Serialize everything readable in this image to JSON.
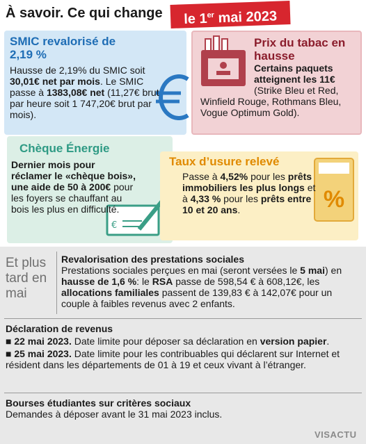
{
  "header": {
    "title": "À savoir. Ce qui change",
    "badge": [
      "le 1",
      {
        "sup": "er"
      },
      " mai 2023"
    ]
  },
  "boxes": [
    {
      "title": "SMIC revalorisé de 2,19 %",
      "body": [
        "Hausse de 2,19% du SMIC soit ",
        {
          "bold": "30,01€ net par mois"
        },
        ". Le SMIC passe à ",
        {
          "bold": "1383,08€ net"
        },
        " (11,27€ brut par heure soit 1 747,20€ brut par mois)."
      ]
    },
    {
      "title": "Prix du tabac en hausse",
      "body": [
        {
          "bold": "Certains paquets atteignent les 11€"
        },
        " (Strike Bleu et Red, Winfield Rouge, Rothmans Bleu, Vogue Optimum Gold)."
      ]
    },
    {
      "title": "Chèque Énergie",
      "body": [
        {
          "bold": "Dernier mois pour réclamer le «chèque bois», une aide de 50 à 200€"
        },
        " pour les foyers se chauffant au bois les plus en difficulté."
      ]
    },
    {
      "title": "Taux d’usure relevé",
      "body": [
        "Passe à ",
        {
          "bold": "4,52%"
        },
        " pour les ",
        {
          "bold": "prêts immobiliers les plus longs"
        },
        " et à ",
        {
          "bold": "4,33 %"
        },
        " pour les ",
        {
          "bold": "prêts entre 10 et 20 ans"
        },
        "."
      ]
    }
  ],
  "later": {
    "label": "Et plus tard en mai",
    "sections": [
      {
        "title": "Revalorisation des prestations sociales",
        "paragraphs": [
          [
            "Prestations sociales perçues en mai (seront versées le ",
            {
              "bold": "5 mai"
            },
            ") en ",
            {
              "bold": "hausse de 1,6 %"
            },
            ": le ",
            {
              "bold": "RSA"
            },
            " passe de 598,54 € à 608,12€, les ",
            {
              "bold": "allocations familiales"
            },
            " passent de 139,83 € à 142,07€ pour un couple à faibles revenus avec 2 enfants."
          ]
        ]
      },
      {
        "title": "Déclaration de revenus",
        "paragraphs": [
          [
            {
              "bold": "■ 22 mai 2023."
            },
            " Date limite pour déposer sa déclaration en ",
            {
              "bold": "version papier"
            },
            "."
          ],
          [
            {
              "bold": "■ 25 mai 2023."
            },
            " Date limite pour les contribuables qui déclarent sur Internet et résident dans les départements de 01 à 19 et ceux vivant à l’étranger."
          ]
        ]
      },
      {
        "title": "Bourses étudiantes sur critères sociaux",
        "paragraphs": [
          [
            "Demandes à déposer avant le 31 mai 2023 inclus."
          ]
        ]
      }
    ]
  },
  "footer": {
    "logo": "VISACTU"
  }
}
